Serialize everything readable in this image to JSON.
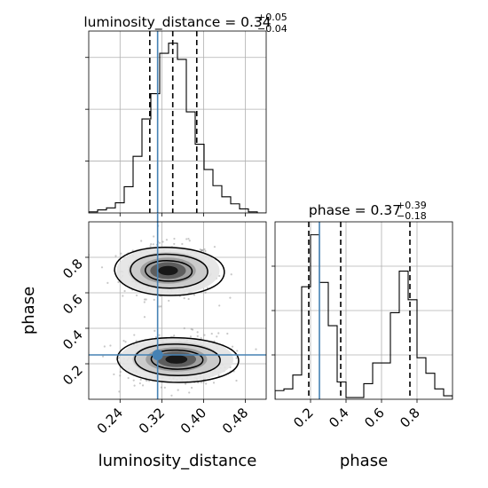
{
  "chart_data": [
    {
      "type": "histogram",
      "panel": "luminosity_distance marginal",
      "title": {
        "base": "luminosity_distance = 0.34",
        "sup": "+0.05",
        "sub": "−0.04"
      },
      "xlim": [
        0.18,
        0.52
      ],
      "bins": [
        {
          "x0": 0.18,
          "x1": 0.197,
          "count": 1
        },
        {
          "x0": 0.197,
          "x1": 0.214,
          "count": 3
        },
        {
          "x0": 0.214,
          "x1": 0.231,
          "count": 5
        },
        {
          "x0": 0.231,
          "x1": 0.248,
          "count": 10
        },
        {
          "x0": 0.248,
          "x1": 0.265,
          "count": 26
        },
        {
          "x0": 0.265,
          "x1": 0.282,
          "count": 56
        },
        {
          "x0": 0.282,
          "x1": 0.299,
          "count": 93
        },
        {
          "x0": 0.299,
          "x1": 0.316,
          "count": 118
        },
        {
          "x0": 0.316,
          "x1": 0.333,
          "count": 158
        },
        {
          "x0": 0.333,
          "x1": 0.35,
          "count": 168
        },
        {
          "x0": 0.35,
          "x1": 0.367,
          "count": 152
        },
        {
          "x0": 0.367,
          "x1": 0.384,
          "count": 100
        },
        {
          "x0": 0.384,
          "x1": 0.401,
          "count": 68
        },
        {
          "x0": 0.401,
          "x1": 0.418,
          "count": 43
        },
        {
          "x0": 0.418,
          "x1": 0.435,
          "count": 27
        },
        {
          "x0": 0.435,
          "x1": 0.452,
          "count": 16
        },
        {
          "x0": 0.452,
          "x1": 0.469,
          "count": 9
        },
        {
          "x0": 0.469,
          "x1": 0.486,
          "count": 4
        },
        {
          "x0": 0.486,
          "x1": 0.503,
          "count": 1
        },
        {
          "x0": 0.503,
          "x1": 0.52,
          "count": 0
        }
      ],
      "ymax": 180,
      "quantiles": [
        0.297,
        0.341,
        0.387
      ],
      "truth": 0.312,
      "grid": true
    },
    {
      "type": "histogram",
      "panel": "phase marginal",
      "title": {
        "base": "phase = 0.37",
        "sup": "+0.39",
        "sub": "−0.18"
      },
      "xlim": [
        0.0,
        1.0
      ],
      "xticks": [
        "0.2",
        "0.4",
        "0.6",
        "0.8"
      ],
      "xtick_values": [
        0.2,
        0.4,
        0.6,
        0.8
      ],
      "xlabel": "phase",
      "bins": [
        {
          "x0": 0.0,
          "x1": 0.05,
          "count": 10
        },
        {
          "x0": 0.05,
          "x1": 0.1,
          "count": 12
        },
        {
          "x0": 0.1,
          "x1": 0.15,
          "count": 28
        },
        {
          "x0": 0.15,
          "x1": 0.2,
          "count": 130
        },
        {
          "x0": 0.2,
          "x1": 0.25,
          "count": 190
        },
        {
          "x0": 0.25,
          "x1": 0.3,
          "count": 135
        },
        {
          "x0": 0.3,
          "x1": 0.35,
          "count": 85
        },
        {
          "x0": 0.35,
          "x1": 0.4,
          "count": 20
        },
        {
          "x0": 0.4,
          "x1": 0.45,
          "count": 2
        },
        {
          "x0": 0.45,
          "x1": 0.5,
          "count": 2
        },
        {
          "x0": 0.5,
          "x1": 0.55,
          "count": 18
        },
        {
          "x0": 0.55,
          "x1": 0.6,
          "count": 42
        },
        {
          "x0": 0.6,
          "x1": 0.65,
          "count": 42
        },
        {
          "x0": 0.65,
          "x1": 0.7,
          "count": 100
        },
        {
          "x0": 0.7,
          "x1": 0.75,
          "count": 148
        },
        {
          "x0": 0.75,
          "x1": 0.8,
          "count": 115
        },
        {
          "x0": 0.8,
          "x1": 0.85,
          "count": 48
        },
        {
          "x0": 0.85,
          "x1": 0.9,
          "count": 30
        },
        {
          "x0": 0.9,
          "x1": 0.95,
          "count": 12
        },
        {
          "x0": 0.95,
          "x1": 1.0,
          "count": 4
        }
      ],
      "ymax": 205,
      "quantiles": [
        0.19,
        0.37,
        0.76
      ],
      "truth": 0.25,
      "grid": true
    },
    {
      "type": "scatter",
      "panel": "2D density (luminosity_distance vs phase)",
      "xlim": [
        0.18,
        0.52
      ],
      "ylim": [
        0.0,
        1.0
      ],
      "xticks": [
        "0.24",
        "0.32",
        "0.40",
        "0.48"
      ],
      "xtick_values": [
        0.24,
        0.32,
        0.4,
        0.48
      ],
      "yticks": [
        "0.2",
        "0.4",
        "0.6",
        "0.8"
      ],
      "ytick_values": [
        0.2,
        0.4,
        0.6,
        0.8
      ],
      "xlabel": "luminosity_distance",
      "ylabel": "phase",
      "modes": [
        {
          "cx": 0.332,
          "cy": 0.725,
          "sx": 0.038,
          "sy": 0.07,
          "n": 420
        },
        {
          "cx": 0.348,
          "cy": 0.225,
          "sx": 0.042,
          "sy": 0.065,
          "n": 520
        }
      ],
      "truth": {
        "x": 0.312,
        "y": 0.25
      },
      "grid": true
    }
  ],
  "colors": {
    "truth": "#4682b4",
    "hist": "#000000",
    "quantile": "#000000",
    "points": "#9a9a9a"
  }
}
